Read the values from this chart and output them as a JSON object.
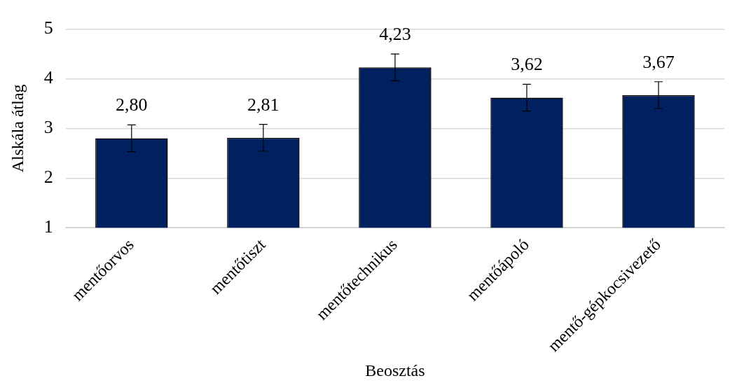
{
  "chart_data": {
    "type": "bar",
    "xlabel": "Beosztás",
    "ylabel": "Alskála átlag",
    "categories": [
      "mentőorvos",
      "mentőtiszt",
      "mentőtechnikus",
      "mentőápoló",
      "mentő-gépkocsivezető"
    ],
    "values": [
      2.8,
      2.81,
      4.23,
      3.62,
      3.67
    ],
    "value_labels": [
      "2,80",
      "2,81",
      "4,23",
      "3,62",
      "3,67"
    ],
    "errors": [
      0.27,
      0.27,
      0.27,
      0.27,
      0.27
    ],
    "color": "#002060",
    "ylim": [
      1,
      5
    ],
    "yticks": [
      1,
      2,
      3,
      4,
      5
    ],
    "grid": "y",
    "legend": false
  }
}
